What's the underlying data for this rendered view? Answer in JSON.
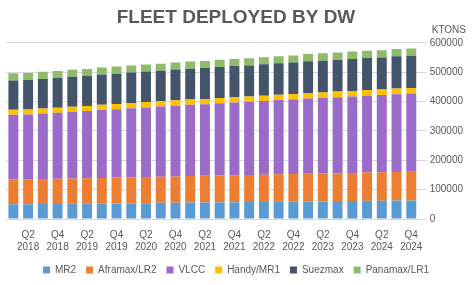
{
  "chart_data": {
    "type": "bar",
    "title": "FLEET DEPLOYED BY DW",
    "ylabel": "KTONS",
    "categories": [
      null,
      "Q2 2018",
      null,
      "Q4 2018",
      null,
      "Q2 2019",
      null,
      "Q4 2019",
      null,
      "Q2 2020",
      null,
      "Q4 2020",
      null,
      "Q2 2021",
      null,
      "Q4 2021",
      null,
      "Q2 2022",
      null,
      "Q4 2022",
      null,
      "Q2 2023",
      null,
      "Q4 2023",
      null,
      "Q2 2024",
      null,
      "Q4 2024"
    ],
    "series": [
      {
        "name": "MR2",
        "color": "#5b9bd5",
        "values": [
          50000,
          50000,
          51000,
          51000,
          52000,
          52000,
          53000,
          53000,
          54000,
          54000,
          55000,
          55000,
          56000,
          56000,
          57000,
          57000,
          58000,
          58000,
          59000,
          59000,
          60000,
          60000,
          61000,
          61000,
          62000,
          62000,
          63000,
          63000
        ]
      },
      {
        "name": "Aframax/LR2",
        "color": "#ed7d31",
        "values": [
          85000,
          85000,
          85000,
          86000,
          86000,
          87000,
          87000,
          88000,
          88000,
          89000,
          89000,
          90000,
          90000,
          91000,
          91000,
          92000,
          92000,
          93000,
          93000,
          94000,
          94000,
          95000,
          95000,
          96000,
          96000,
          97000,
          97000,
          98000
        ]
      },
      {
        "name": "VLCC",
        "color": "#9b6bc9",
        "values": [
          220000,
          221000,
          223000,
          225000,
          227000,
          229000,
          231000,
          233000,
          235000,
          237000,
          239000,
          241000,
          243000,
          244000,
          246000,
          248000,
          249000,
          251000,
          253000,
          254000,
          256000,
          257000,
          259000,
          260000,
          262000,
          263000,
          265000,
          266000
        ]
      },
      {
        "name": "Handy/MR1",
        "color": "#ffc000",
        "values": [
          17000,
          17000,
          17000,
          17000,
          17000,
          17000,
          18000,
          18000,
          18000,
          18000,
          18000,
          18000,
          18000,
          18000,
          18000,
          18000,
          18000,
          18000,
          18000,
          19000,
          19000,
          19000,
          19000,
          19000,
          19000,
          19000,
          19000,
          19000
        ]
      },
      {
        "name": "Suezmax",
        "color": "#44546a",
        "values": [
          100000,
          100000,
          101000,
          101000,
          102000,
          102000,
          103000,
          103000,
          104000,
          104000,
          104000,
          105000,
          105000,
          105000,
          106000,
          106000,
          106000,
          107000,
          107000,
          107000,
          108000,
          108000,
          108000,
          109000,
          109000,
          109000,
          110000,
          110000
        ]
      },
      {
        "name": "Panamax/LR1",
        "color": "#8fbc6a",
        "values": [
          24000,
          24000,
          24000,
          24000,
          24000,
          24000,
          24000,
          24000,
          24000,
          24000,
          24000,
          24000,
          24000,
          24000,
          24000,
          24000,
          24000,
          24000,
          24000,
          24000,
          25000,
          25000,
          25000,
          25000,
          25000,
          25000,
          25000,
          25000
        ]
      }
    ],
    "stacked": true,
    "ylim": [
      0,
      600000
    ],
    "yticks": [
      0,
      100000,
      200000,
      300000,
      400000,
      500000,
      600000
    ],
    "grid": true,
    "legend": "bottom"
  }
}
